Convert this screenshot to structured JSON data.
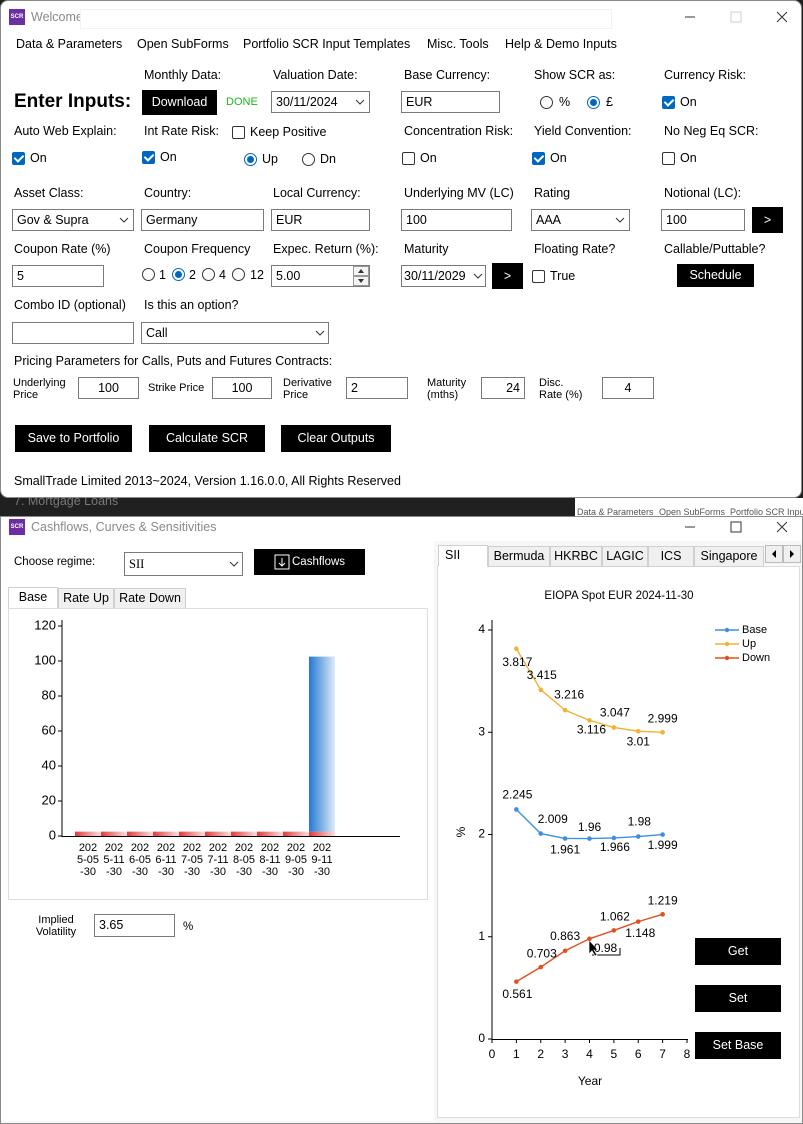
{
  "background": {
    "list_item": "7. Mortgage Loans",
    "menu": [
      "Data & Parameters",
      "Open SubForms",
      "Portfolio SCR Input"
    ]
  },
  "welcome_window": {
    "icon": "SCR",
    "title": "Welcome",
    "menu": [
      "Data & Parameters",
      "Open SubForms",
      "Portfolio SCR Input Templates",
      "Misc. Tools",
      "Help & Demo Inputs"
    ],
    "heading": "Enter Inputs:",
    "monthly_data": {
      "label": "Monthly Data:",
      "button": "Download",
      "status": "DONE"
    },
    "valuation_date": {
      "label": "Valuation Date:",
      "value": "30/11/2024"
    },
    "base_currency": {
      "label": "Base Currency:",
      "value": "EUR"
    },
    "show_scr_as": {
      "label": "Show SCR as:",
      "options": [
        "%",
        "£"
      ],
      "selected": 1
    },
    "currency_risk": {
      "label": "Currency Risk:",
      "option": "On",
      "checked": true
    },
    "auto_web_explain": {
      "label": "Auto Web Explain:",
      "option": "On",
      "checked": true
    },
    "int_rate_risk": {
      "label": "Int Rate Risk:",
      "option": "On",
      "checked": true
    },
    "keep_positive": {
      "option": "Keep Positive",
      "checked": false
    },
    "direction": {
      "options": [
        "Up",
        "Dn"
      ],
      "selected": 0
    },
    "concentration_risk": {
      "label": "Concentration Risk:",
      "option": "On",
      "checked": false
    },
    "yield_convention": {
      "label": "Yield Convention:",
      "option": "On",
      "checked": true
    },
    "no_neg_eq_scr": {
      "label": "No Neg Eq SCR:",
      "option": "On",
      "checked": false
    },
    "asset_class": {
      "label": "Asset Class:",
      "value": "Gov & Supra"
    },
    "country": {
      "label": "Country:",
      "value": "Germany"
    },
    "local_currency": {
      "label": "Local Currency:",
      "value": "EUR"
    },
    "underlying_mv": {
      "label": "Underlying MV (LC)",
      "value": 100
    },
    "rating": {
      "label": "Rating",
      "value": "AAA"
    },
    "notional": {
      "label": "Notional (LC):",
      "value": 100,
      "button": ">"
    },
    "coupon_rate": {
      "label": "Coupon Rate (%)",
      "value": 5
    },
    "coupon_frequency": {
      "label": "Coupon Frequency",
      "options": [
        1,
        2,
        4,
        12
      ],
      "selected": 1
    },
    "expected_return": {
      "label": "Expec. Return (%):",
      "value": "5.00"
    },
    "maturity": {
      "label": "Maturity",
      "value": "30/11/2029",
      "button": ">"
    },
    "floating_rate": {
      "label": "Floating Rate?",
      "option": "True",
      "checked": false
    },
    "callable_puttable": {
      "label": "Callable/Puttable?",
      "button": "Schedule"
    },
    "combo_id": {
      "label": "Combo ID (optional)"
    },
    "is_option": {
      "label": "Is this an option?",
      "value": "Call"
    },
    "pricing": {
      "title": "Pricing Parameters for Calls, Puts and Futures Contracts:",
      "fields": [
        {
          "label": "Underlying Price",
          "value": 100
        },
        {
          "label": "Strike Price",
          "value": 100
        },
        {
          "label": "Derivative Price",
          "value": 2
        },
        {
          "label": "Maturity (mths)",
          "value": 24
        },
        {
          "label": "Disc. Rate (%)",
          "value": 4
        }
      ]
    },
    "actions": [
      "Save to Portfolio",
      "Calculate SCR",
      "Clear Outputs"
    ],
    "footer": "SmallTrade Limited 2013~2024, Version 1.16.0.0, All Rights Reserved"
  },
  "cashflow_window": {
    "icon": "SCR",
    "title": "Cashflows, Curves & Sensitivities",
    "regime_label": "Choose regime:",
    "regime": "SII",
    "cashflows_button": "Cashflows",
    "tabs": [
      "Base",
      "Rate Up",
      "Rate Down"
    ],
    "selected_tab": 0,
    "chart": {
      "type": "bar",
      "stacked": true,
      "categories": [
        "2025-05-30",
        "2025-11-30",
        "2026-05-30",
        "2026-11-30",
        "2027-05-30",
        "2027-11-30",
        "2028-05-30",
        "2028-11-30",
        "2029-05-30",
        "2029-11-30"
      ],
      "series": [
        {
          "color": "#e23b3b",
          "values": [
            2.5,
            2.5,
            2.5,
            2.5,
            2.5,
            2.5,
            2.5,
            2.5,
            2.5,
            2.5
          ]
        },
        {
          "color": "#2479d3",
          "values": [
            0,
            0,
            0,
            0,
            0,
            0,
            0,
            0,
            0,
            100
          ]
        }
      ],
      "ylim": [
        0,
        120
      ],
      "yticks": [
        0,
        20,
        40,
        60,
        80,
        100,
        120
      ]
    },
    "implied_volatility": {
      "label": "Implied Volatility",
      "value": 3.65,
      "unit": "%"
    },
    "regime_tabs": [
      "SII",
      "Bermuda",
      "HKRBC",
      "LAGIC",
      "ICS",
      "Singapore"
    ],
    "selected_regime": 0,
    "curve_chart": {
      "type": "line",
      "title": "EIOPA Spot EUR 2024-11-30",
      "x_label": "Year",
      "y_label": "%",
      "x": [
        1,
        2,
        3,
        4,
        5,
        6,
        7
      ],
      "series": [
        {
          "name": "Base",
          "color": "#3d8fe0",
          "values": [
            2.245,
            2.009,
            1.961,
            1.96,
            1.966,
            1.98,
            1.999
          ]
        },
        {
          "name": "Up",
          "color": "#f2b233",
          "values": [
            3.817,
            3.415,
            3.216,
            3.116,
            3.047,
            3.01,
            2.999
          ]
        },
        {
          "name": "Down",
          "color": "#e2501e",
          "values": [
            0.561,
            0.703,
            0.863,
            0.98,
            1.062,
            1.148,
            1.219
          ]
        }
      ],
      "xlim": [
        0,
        8
      ],
      "xticks": [
        0,
        1,
        2,
        3,
        4,
        5,
        6,
        7,
        8
      ],
      "ylim": [
        0,
        4
      ],
      "yticks": [
        0,
        1,
        2,
        3,
        4
      ],
      "legend": "upper right"
    },
    "buttons": [
      "Get",
      "Set",
      "Set Base"
    ]
  }
}
